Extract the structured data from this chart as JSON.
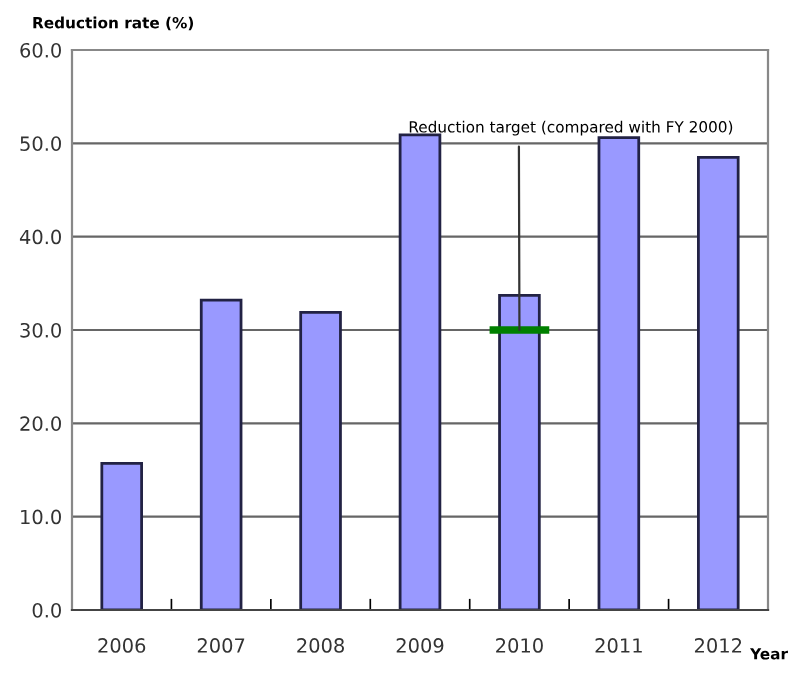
{
  "chart_data": {
    "type": "bar",
    "ylabel": "Reduction rate (%)",
    "xlabel": "Year",
    "categories": [
      "2006",
      "2007",
      "2008",
      "2009",
      "2010",
      "2011",
      "2012"
    ],
    "series": [
      {
        "color": "#9999ff",
        "values": [
          15.7,
          33.2,
          31.9,
          50.9,
          33.7,
          50.6,
          48.5
        ]
      },
      {
        "color": "#008000",
        "values": [
          null,
          null,
          null,
          null,
          0.8,
          null,
          null
        ],
        "base": [
          null,
          null,
          null,
          null,
          29.6,
          null,
          null
        ]
      }
    ],
    "ylim": [
      0,
      60
    ],
    "yticks": [
      {
        "value": 0,
        "label": "0.0"
      },
      {
        "value": 10,
        "label": "10.0"
      },
      {
        "value": 20,
        "label": "20.0"
      },
      {
        "value": 30,
        "label": "30.0"
      },
      {
        "value": 40,
        "label": "40.0"
      },
      {
        "value": 50,
        "label": "50.0"
      },
      {
        "value": 60,
        "label": "60.0"
      }
    ],
    "grid": "y",
    "annotations": [
      {
        "text": "Reduction target (compared with FY 2000)",
        "x": "2010",
        "y": 30
      }
    ]
  }
}
